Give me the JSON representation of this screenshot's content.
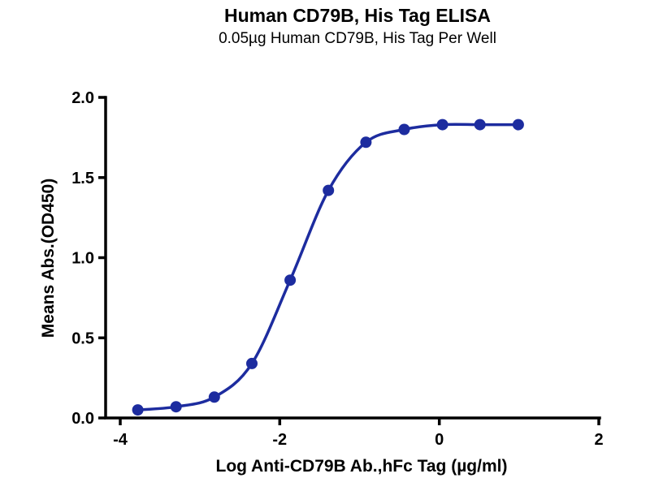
{
  "chart_data": {
    "type": "line",
    "title": "Human CD79B, His Tag ELISA",
    "subtitle": "0.05µg Human CD79B, His Tag Per Well",
    "xlabel": "Log Anti-CD79B Ab.,hFc Tag (µg/ml)",
    "ylabel": "Means Abs.(OD450)",
    "xlim": [
      -4,
      2
    ],
    "ylim": [
      0,
      2
    ],
    "xtick_labels": [
      "-4",
      "-2",
      "0",
      "2"
    ],
    "ytick_labels": [
      "0.0",
      "0.5",
      "1.0",
      "1.5",
      "2.0"
    ],
    "grid": false,
    "legend": "none",
    "curve_style": "smooth sigmoidal fit through points",
    "series": [
      {
        "name": "Anti-CD79B Ab.,hFc Tag",
        "x": [
          -3.78,
          -3.3,
          -2.82,
          -2.35,
          -1.87,
          -1.39,
          -0.92,
          -0.44,
          0.04,
          0.51,
          0.99
        ],
        "y": [
          0.05,
          0.07,
          0.13,
          0.34,
          0.86,
          1.42,
          1.72,
          1.8,
          1.83,
          1.83,
          1.83
        ]
      }
    ]
  },
  "colors": {
    "curve": "#1d2c9f",
    "marker": "#1d2c9f",
    "axis": "#000000",
    "text": "#000000",
    "background": "#ffffff"
  }
}
